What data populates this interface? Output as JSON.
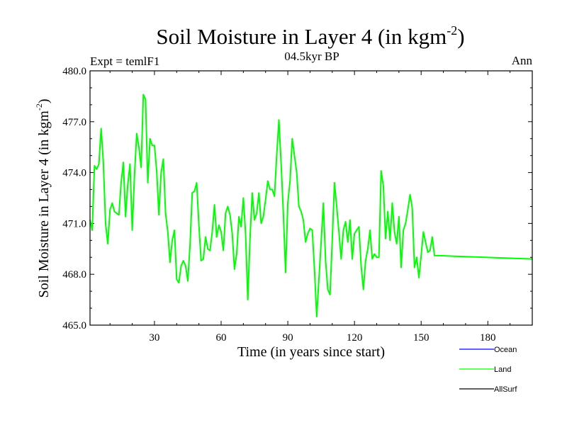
{
  "chart_data": {
    "type": "line",
    "title_main": "Soil Moisture in Layer 4 (in kgm",
    "title_sup": "-2",
    "title_close": ")",
    "subtitle": "04.5kyr BP",
    "left_label": "Expt = temlF1",
    "right_label": "Ann",
    "xlabel": "Time (in years since start)",
    "ylabel_main": "Soil Moisture in Layer 4 (in kgm",
    "ylabel_sup": "-2",
    "ylabel_close": ")",
    "xlim": [
      1,
      200
    ],
    "ylim": [
      465.0,
      480.0
    ],
    "x_ticks": [
      30,
      60,
      90,
      120,
      150,
      180
    ],
    "x_tick_labels": [
      "30",
      "60",
      "90",
      "120",
      "150",
      "180"
    ],
    "y_ticks": [
      465.0,
      468.0,
      471.0,
      474.0,
      477.0,
      480.0
    ],
    "y_tick_labels": [
      "465.0",
      "468.0",
      "471.0",
      "474.0",
      "477.0",
      "480.0"
    ],
    "legend": [
      {
        "name": "Ocean",
        "color": "#0000ff"
      },
      {
        "name": "Land",
        "color": "#00ff00"
      },
      {
        "name": "AllSurf",
        "color": "#000000"
      }
    ],
    "series": [
      {
        "name": "Land",
        "color": "#00ff00",
        "x": [
          1,
          2,
          3,
          4,
          5,
          6,
          7,
          8,
          9,
          10,
          11,
          12,
          13,
          14,
          15,
          16,
          17,
          18,
          19,
          20,
          21,
          22,
          23,
          24,
          25,
          26,
          27,
          28,
          29,
          30,
          31,
          32,
          33,
          34,
          35,
          36,
          37,
          38,
          39,
          40,
          41,
          42,
          43,
          44,
          45,
          46,
          47,
          48,
          49,
          50,
          51,
          52,
          53,
          54,
          55,
          56,
          57,
          58,
          59,
          60,
          61,
          62,
          63,
          64,
          65,
          66,
          67,
          68,
          69,
          70,
          71,
          72,
          73,
          74,
          75,
          76,
          77,
          78,
          79,
          80,
          81,
          82,
          83,
          84,
          85,
          86,
          87,
          88,
          89,
          90,
          91,
          92,
          93,
          94,
          95,
          96,
          97,
          98,
          99,
          100,
          101,
          102,
          103,
          104,
          105,
          106,
          107,
          108,
          109,
          110,
          111,
          112,
          113,
          114,
          115,
          116,
          117,
          118,
          119,
          120,
          121,
          122,
          123,
          124,
          125,
          126,
          127,
          128,
          129,
          130,
          131,
          132,
          133,
          134,
          135,
          136,
          137,
          138,
          139,
          140,
          141,
          142,
          143,
          144,
          145,
          146,
          147,
          148,
          149,
          150,
          151,
          152,
          153,
          154,
          155,
          156,
          157,
          158,
          200
        ],
        "values": [
          471.2,
          470.6,
          474.4,
          474.2,
          474.5,
          476.6,
          474.6,
          471.0,
          469.8,
          471.8,
          472.2,
          471.7,
          471.6,
          471.5,
          473.4,
          474.6,
          471.4,
          473.3,
          474.5,
          470.6,
          473.8,
          476.3,
          475.5,
          474.3,
          478.6,
          478.3,
          473.4,
          476.0,
          475.6,
          475.6,
          474.1,
          471.5,
          474.0,
          474.8,
          471.6,
          470.5,
          468.7,
          470.0,
          470.6,
          467.7,
          467.5,
          468.5,
          468.8,
          468.5,
          467.6,
          469.7,
          472.8,
          472.9,
          473.4,
          470.9,
          468.8,
          468.9,
          470.2,
          469.5,
          469.4,
          470.5,
          472.1,
          470.2,
          470.9,
          470.5,
          469.4,
          471.6,
          472.0,
          471.5,
          470.4,
          468.3,
          469.2,
          471.4,
          470.8,
          472.5,
          470.4,
          466.5,
          470.1,
          472.8,
          471.2,
          471.6,
          472.8,
          471.0,
          471.4,
          472.4,
          473.5,
          473.0,
          473.0,
          472.6,
          475.0,
          477.1,
          474.5,
          471.6,
          468.1,
          472.2,
          473.5,
          476.0,
          475.0,
          474.0,
          472.0,
          471.7,
          471.2,
          469.9,
          470.4,
          470.7,
          470.6,
          468.3,
          465.5,
          467.7,
          469.9,
          472.2,
          468.8,
          467.1,
          466.8,
          470.0,
          473.4,
          472.0,
          470.5,
          468.9,
          470.6,
          471.1,
          469.9,
          471.2,
          468.9,
          470.4,
          470.6,
          470.8,
          468.5,
          467.1,
          468.8,
          469.5,
          470.6,
          468.9,
          469.2,
          469.0,
          469.0,
          474.1,
          473.2,
          470.1,
          471.7,
          470.0,
          472.2,
          470.5,
          469.8,
          471.4,
          468.4,
          470.6,
          471.0,
          471.8,
          472.7,
          471.9,
          468.4,
          469.0,
          467.8,
          469.1,
          470.5,
          469.9,
          469.3,
          469.4,
          470.2,
          469.1,
          469.1,
          469.1,
          468.9
        ]
      }
    ]
  }
}
